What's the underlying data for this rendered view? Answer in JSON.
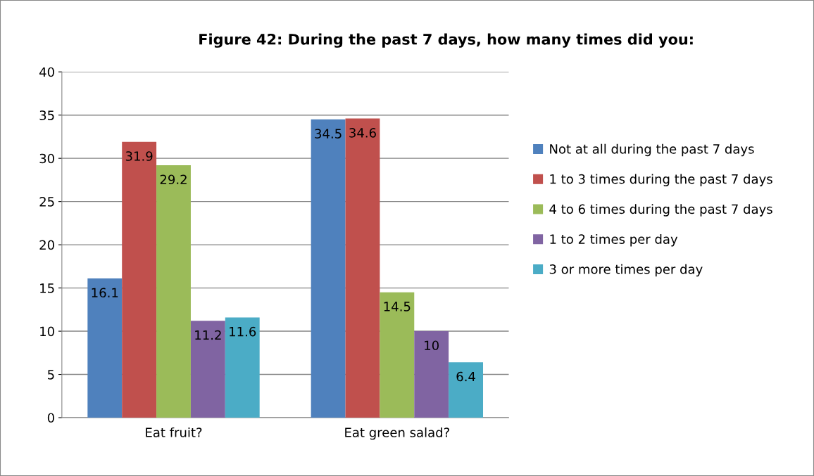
{
  "chart_data": {
    "type": "bar",
    "title": "Figure 42: During the past 7 days, how many times did you:",
    "categories": [
      "Eat fruit?",
      "Eat green salad?"
    ],
    "series": [
      {
        "name": "Not at all during the past 7 days",
        "color": "#4f81bd",
        "values": [
          16.1,
          34.5
        ]
      },
      {
        "name": "1 to 3 times during the past 7 days",
        "color": "#c0504d",
        "values": [
          31.9,
          34.6
        ]
      },
      {
        "name": "4 to 6 times during the past 7 days",
        "color": "#9bbb59",
        "values": [
          29.2,
          14.5
        ]
      },
      {
        "name": "1 to 2 times per day",
        "color": "#8064a2",
        "values": [
          11.2,
          10
        ]
      },
      {
        "name": "3 or more times per day",
        "color": "#4bacc6",
        "values": [
          11.6,
          6.4
        ]
      }
    ],
    "ylim": [
      0,
      40
    ],
    "yticks": [
      0,
      5,
      10,
      15,
      20,
      25,
      30,
      35,
      40
    ],
    "grid": "y",
    "legend": "right",
    "data_labels": true
  }
}
